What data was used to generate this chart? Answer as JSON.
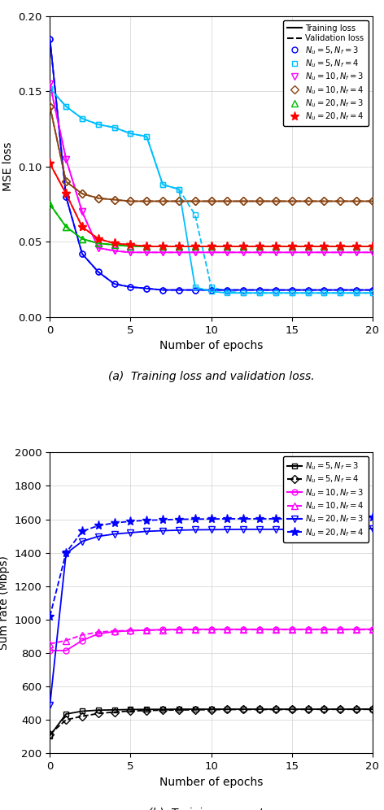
{
  "subplot_a": {
    "xlabel": "Number of epochs",
    "ylabel": "MSE loss",
    "caption": "(a)  Training loss and validation loss.",
    "xlim": [
      0,
      20
    ],
    "ylim": [
      0,
      0.2
    ],
    "yticks": [
      0,
      0.05,
      0.1,
      0.15,
      0.2
    ],
    "xticks": [
      0,
      5,
      10,
      15,
      20
    ],
    "series": [
      {
        "label": "$N_u = 5,\\,N_f = 3$",
        "color": "#0000FF",
        "marker": "o",
        "train": [
          0.185,
          0.08,
          0.042,
          0.03,
          0.022,
          0.02,
          0.019,
          0.018,
          0.018,
          0.018,
          0.018,
          0.018,
          0.018,
          0.018,
          0.018,
          0.018,
          0.018,
          0.018,
          0.018,
          0.018,
          0.018
        ],
        "val": [
          0.185,
          0.08,
          0.042,
          0.03,
          0.022,
          0.02,
          0.019,
          0.018,
          0.018,
          0.018,
          0.018,
          0.018,
          0.018,
          0.018,
          0.018,
          0.018,
          0.018,
          0.018,
          0.018,
          0.018,
          0.018
        ]
      },
      {
        "label": "$N_u = 5,\\,N_f = 4$",
        "color": "#00BFFF",
        "marker": "s",
        "train": [
          0.152,
          0.14,
          0.132,
          0.128,
          0.126,
          0.122,
          0.12,
          0.088,
          0.085,
          0.02,
          0.017,
          0.016,
          0.016,
          0.016,
          0.016,
          0.016,
          0.016,
          0.016,
          0.016,
          0.016,
          0.016
        ],
        "val": [
          0.152,
          0.14,
          0.132,
          0.128,
          0.126,
          0.122,
          0.12,
          0.088,
          0.085,
          0.068,
          0.02,
          0.017,
          0.016,
          0.016,
          0.016,
          0.016,
          0.016,
          0.016,
          0.016,
          0.016,
          0.016
        ]
      },
      {
        "label": "$N_u = 10,\\,N_f = 3$",
        "color": "#FF00FF",
        "marker": "v",
        "train": [
          0.155,
          0.105,
          0.07,
          0.046,
          0.044,
          0.043,
          0.043,
          0.043,
          0.043,
          0.043,
          0.043,
          0.043,
          0.043,
          0.043,
          0.043,
          0.043,
          0.043,
          0.043,
          0.043,
          0.043,
          0.043
        ],
        "val": [
          0.155,
          0.105,
          0.07,
          0.046,
          0.044,
          0.043,
          0.043,
          0.043,
          0.043,
          0.043,
          0.043,
          0.043,
          0.043,
          0.043,
          0.043,
          0.043,
          0.043,
          0.043,
          0.043,
          0.043,
          0.043
        ]
      },
      {
        "label": "$N_u = 10,\\,N_f = 4$",
        "color": "#8B4513",
        "marker": "D",
        "train": [
          0.14,
          0.09,
          0.082,
          0.079,
          0.078,
          0.077,
          0.077,
          0.077,
          0.077,
          0.077,
          0.077,
          0.077,
          0.077,
          0.077,
          0.077,
          0.077,
          0.077,
          0.077,
          0.077,
          0.077,
          0.077
        ],
        "val": [
          0.14,
          0.09,
          0.082,
          0.079,
          0.078,
          0.077,
          0.077,
          0.077,
          0.077,
          0.077,
          0.077,
          0.077,
          0.077,
          0.077,
          0.077,
          0.077,
          0.077,
          0.077,
          0.077,
          0.077,
          0.077
        ]
      },
      {
        "label": "$N_u = 20,\\,N_f = 3$",
        "color": "#00BB00",
        "marker": "^",
        "train": [
          0.075,
          0.06,
          0.052,
          0.049,
          0.048,
          0.047,
          0.047,
          0.047,
          0.047,
          0.047,
          0.047,
          0.047,
          0.047,
          0.047,
          0.047,
          0.047,
          0.047,
          0.047,
          0.047,
          0.047,
          0.047
        ],
        "val": [
          0.075,
          0.06,
          0.052,
          0.049,
          0.048,
          0.047,
          0.047,
          0.047,
          0.047,
          0.047,
          0.047,
          0.047,
          0.047,
          0.047,
          0.047,
          0.047,
          0.047,
          0.047,
          0.047,
          0.047,
          0.047
        ]
      },
      {
        "label": "$N_u = 20,\\,N_f = 4$",
        "color": "#FF0000",
        "marker": "*",
        "train": [
          0.102,
          0.082,
          0.06,
          0.052,
          0.049,
          0.048,
          0.047,
          0.047,
          0.047,
          0.047,
          0.047,
          0.047,
          0.047,
          0.047,
          0.047,
          0.047,
          0.047,
          0.047,
          0.047,
          0.047,
          0.047
        ],
        "val": [
          0.102,
          0.082,
          0.06,
          0.052,
          0.049,
          0.048,
          0.047,
          0.047,
          0.047,
          0.047,
          0.047,
          0.047,
          0.047,
          0.047,
          0.047,
          0.047,
          0.047,
          0.047,
          0.047,
          0.047,
          0.047
        ]
      }
    ]
  },
  "subplot_b": {
    "xlabel": "Number of epochs",
    "ylabel": "Sum rate (Mbps)",
    "caption": "(b)  Training sum rate.",
    "xlim": [
      0,
      20
    ],
    "ylim": [
      200,
      2000
    ],
    "yticks": [
      200,
      400,
      600,
      800,
      1000,
      1200,
      1400,
      1600,
      1800,
      2000
    ],
    "xticks": [
      0,
      5,
      10,
      15,
      20
    ],
    "series": [
      {
        "label": "$N_u = 5,\\,N_f = 3$",
        "color": "#000000",
        "marker": "s",
        "linestyle": "-",
        "data": [
          305,
          435,
          452,
          458,
          460,
          462,
          463,
          463,
          464,
          464,
          464,
          464,
          464,
          464,
          464,
          464,
          464,
          464,
          464,
          464,
          465
        ]
      },
      {
        "label": "$N_u = 5,\\,N_f = 4$",
        "color": "#000000",
        "marker": "D",
        "linestyle": "--",
        "data": [
          315,
          400,
          422,
          438,
          447,
          453,
          456,
          458,
          459,
          460,
          461,
          462,
          462,
          462,
          462,
          462,
          463,
          463,
          463,
          463,
          463
        ]
      },
      {
        "label": "$N_u = 10,\\,N_f = 3$",
        "color": "#FF00FF",
        "marker": "o",
        "linestyle": "-",
        "data": [
          815,
          815,
          875,
          915,
          928,
          933,
          937,
          940,
          941,
          942,
          942,
          942,
          942,
          942,
          942,
          942,
          942,
          942,
          942,
          942,
          943
        ]
      },
      {
        "label": "$N_u = 10,\\,N_f = 4$",
        "color": "#FF00FF",
        "marker": "^",
        "linestyle": "--",
        "data": [
          855,
          875,
          908,
          925,
          932,
          935,
          937,
          938,
          939,
          940,
          940,
          940,
          940,
          940,
          940,
          940,
          940,
          940,
          940,
          940,
          940
        ]
      },
      {
        "label": "$N_u = 20,\\,N_f = 3$",
        "color": "#0000FF",
        "marker": "v",
        "linestyle": "-",
        "data": [
          490,
          1395,
          1468,
          1498,
          1512,
          1520,
          1528,
          1532,
          1535,
          1537,
          1538,
          1539,
          1540,
          1540,
          1540,
          1540,
          1540,
          1540,
          1540,
          1540,
          1545
        ]
      },
      {
        "label": "$N_u = 20,\\,N_f = 4$",
        "color": "#0000FF",
        "marker": "*",
        "linestyle": "--",
        "data": [
          1020,
          1400,
          1528,
          1562,
          1578,
          1588,
          1594,
          1597,
          1600,
          1601,
          1602,
          1603,
          1603,
          1603,
          1603,
          1603,
          1603,
          1603,
          1603,
          1603,
          1612
        ]
      }
    ]
  }
}
